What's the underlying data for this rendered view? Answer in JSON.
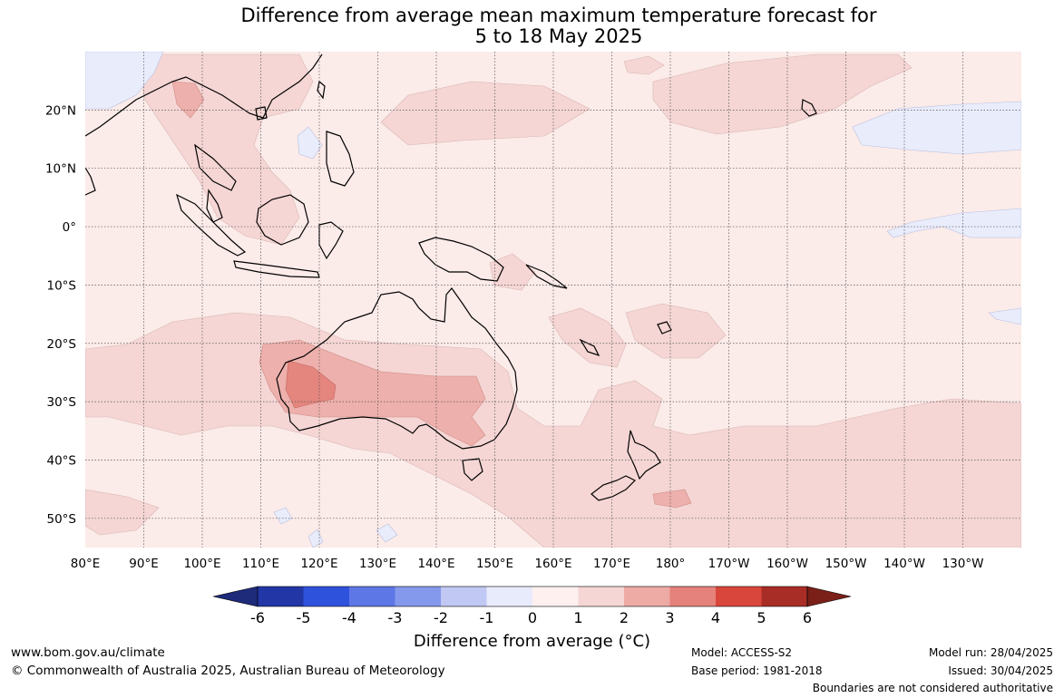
{
  "title": {
    "line1": "Difference from average mean maximum temperature forecast for",
    "line2": "5 to 18 May 2025"
  },
  "map": {
    "lon_labels": [
      "80°E",
      "90°E",
      "100°E",
      "110°E",
      "120°E",
      "130°E",
      "140°E",
      "150°E",
      "160°E",
      "170°E",
      "180°",
      "170°W",
      "160°W",
      "150°W",
      "140°W",
      "130°W"
    ],
    "lat_labels": [
      "20°N",
      "10°N",
      "0°",
      "10°S",
      "20°S",
      "30°S",
      "40°S",
      "50°S"
    ],
    "colors": {
      "land_outline": "#000000",
      "grid": "#555555",
      "anomaly_0_1": "#fbebe9",
      "anomaly_1_2": "#f5d6d4",
      "anomaly_2_3": "#eeb0ac",
      "anomaly_3_4": "#e4857e",
      "anomaly_neg_0_1": "#e9ecfb"
    }
  },
  "colorbar": {
    "ticks": [
      "-6",
      "-5",
      "-4",
      "-3",
      "-2",
      "-1",
      "0",
      "1",
      "2",
      "3",
      "4",
      "5",
      "6"
    ],
    "colors": [
      "#2237a5",
      "#2f52dc",
      "#5d77e6",
      "#8599ec",
      "#c0c8f3",
      "#e8ebfb",
      "#fdf0ef",
      "#f5d6d4",
      "#eeaaa5",
      "#e4827b",
      "#d9463b",
      "#a82d26"
    ],
    "low_extend_color": "#1e2a7a",
    "high_extend_color": "#7a2018",
    "title": "Difference from average (°C)"
  },
  "footer": {
    "website": "www.bom.gov.au/climate",
    "copyright": "© Commonwealth of Australia 2025, Australian Bureau of Meteorology",
    "model": "Model: ACCESS-S2",
    "base_period": "Base period: 1981-2018",
    "model_run": "Model run: 28/04/2025",
    "issued": "Issued: 30/04/2025",
    "disclaimer": "Boundaries are not considered authoritative"
  }
}
